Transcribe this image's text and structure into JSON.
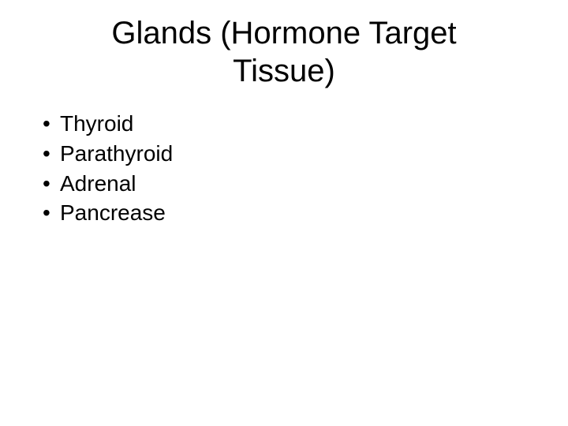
{
  "slide": {
    "title": "Glands (Hormone Target Tissue)",
    "bullets": [
      {
        "text": "Thyroid"
      },
      {
        "text": "Parathyroid"
      },
      {
        "text": "Adrenal"
      },
      {
        "text": "Pancrease"
      }
    ],
    "styling": {
      "background_color": "#ffffff",
      "text_color": "#000000",
      "title_fontsize": 40,
      "title_fontweight": 400,
      "body_fontsize": 28,
      "body_fontweight": 400,
      "font_family": "Arial",
      "bullet_char": "•"
    }
  }
}
